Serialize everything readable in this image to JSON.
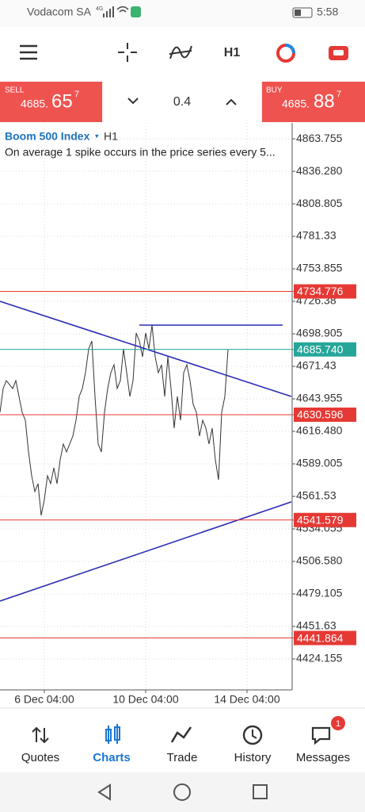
{
  "status_bar": {
    "carrier": "Vodacom SA",
    "network": "4G",
    "time": "5:58"
  },
  "toolbar": {
    "timeframe": "H1"
  },
  "trade_panel": {
    "sell": {
      "label": "SELL",
      "price": "4685.",
      "big": "65",
      "sup": "7"
    },
    "volume": 0.4,
    "buy": {
      "label": "BUY",
      "price": "4685.",
      "big": "88",
      "sup": "7"
    }
  },
  "chart_data": {
    "type": "line",
    "title": "Boom 500 Index",
    "timeframe": "H1",
    "subtitle": "On average 1 spike occurs in the price series every 5...",
    "color": "#333333",
    "values": [
      4632.6,
      4652.7,
      4659.4,
      4656.0,
      4652.7,
      4659.4,
      4646.0,
      4632.6,
      4625.9,
      4599.1,
      4579.0,
      4565.6,
      4572.3,
      4545.5,
      4558.9,
      4579.0,
      4572.3,
      4585.7,
      4572.3,
      4592.4,
      4605.8,
      4599.1,
      4605.8,
      4612.5,
      4625.9,
      4646.0,
      4652.7,
      4666.1,
      4686.2,
      4692.9,
      4646.0,
      4605.8,
      4599.1,
      4632.6,
      4652.7,
      4666.1,
      4672.8,
      4652.7,
      4659.4,
      4686.2,
      4666.1,
      4646.0,
      4659.4,
      4699.6,
      4692.9,
      4679.5,
      4699.6,
      4686.2,
      4706.3,
      4679.5,
      4666.1,
      4672.8,
      4646.0,
      4679.5,
      4652.7,
      4619.2,
      4646.0,
      4625.9,
      4666.1,
      4672.8,
      4659.4,
      4639.3,
      4632.6,
      4612.5,
      4625.9,
      4619.2,
      4605.8,
      4619.2,
      4592.4,
      4575.6,
      4632.6,
      4646.0,
      4685.7
    ],
    "xlim": [
      0,
      92
    ],
    "xticks": [
      {
        "value": 14,
        "label": "6 Dec 04:00"
      },
      {
        "value": 46,
        "label": "10 Dec 04:00"
      },
      {
        "value": 78,
        "label": "14 Dec 04:00"
      }
    ],
    "ylim": [
      4398.0,
      4877.2
    ],
    "yticks": [
      4863.755,
      {
        "value": 4836.28,
        "label": "4836.280"
      },
      4808.805,
      4781.33,
      4753.855,
      4726.38,
      4698.905,
      4671.43,
      4643.955,
      {
        "value": 4616.48,
        "label": "4616.480"
      },
      4589.005,
      4561.53,
      4534.055,
      {
        "value": 4506.58,
        "label": "4506.580"
      },
      4479.105,
      4451.63,
      4424.155
    ],
    "grid": true,
    "levels": [
      4734.776,
      4630.596,
      4541.579,
      4441.864
    ],
    "level_color": "#e53935",
    "price_line": {
      "value": 4685.74,
      "label": "4685.740",
      "color": "#26a69a"
    },
    "trendlines": [
      {
        "x": [
          0,
          92
        ],
        "y": [
          4726.4,
          4646.0
        ],
        "color": "#2b2bb5"
      },
      {
        "x": [
          0,
          92
        ],
        "y": [
          4473.1,
          4556.9
        ],
        "color": "#2b2bb5"
      },
      {
        "x": [
          44,
          89.25
        ],
        "y": [
          4706.3,
          4706.3
        ],
        "color": "#2b2bb5"
      }
    ]
  },
  "nav": {
    "items": [
      "Quotes",
      "Charts",
      "Trade",
      "History",
      "Messages"
    ],
    "badge": 1
  }
}
